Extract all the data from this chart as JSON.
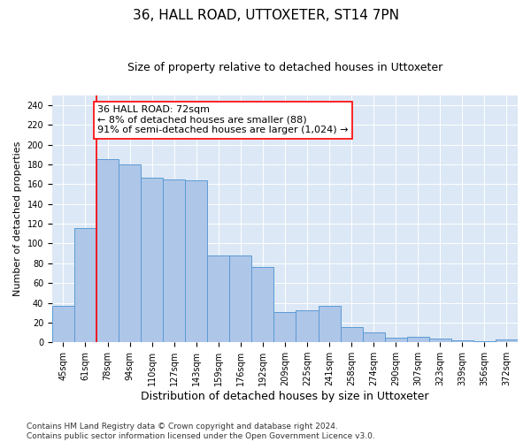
{
  "title": "36, HALL ROAD, UTTOXETER, ST14 7PN",
  "subtitle": "Size of property relative to detached houses in Uttoxeter",
  "xlabel": "Distribution of detached houses by size in Uttoxeter",
  "ylabel": "Number of detached properties",
  "categories": [
    "45sqm",
    "61sqm",
    "78sqm",
    "94sqm",
    "110sqm",
    "127sqm",
    "143sqm",
    "159sqm",
    "176sqm",
    "192sqm",
    "209sqm",
    "225sqm",
    "241sqm",
    "258sqm",
    "274sqm",
    "290sqm",
    "307sqm",
    "323sqm",
    "339sqm",
    "356sqm",
    "372sqm"
  ],
  "values": [
    37,
    116,
    185,
    180,
    167,
    165,
    164,
    88,
    88,
    76,
    31,
    32,
    37,
    15,
    10,
    5,
    6,
    4,
    2,
    1,
    3
  ],
  "bar_color": "#aec6e8",
  "bar_edge_color": "#5b9bd5",
  "vline_color": "red",
  "annotation_text": "36 HALL ROAD: 72sqm\n← 8% of detached houses are smaller (88)\n91% of semi-detached houses are larger (1,024) →",
  "annotation_box_color": "white",
  "annotation_box_edge_color": "red",
  "ylim": [
    0,
    250
  ],
  "yticks": [
    0,
    20,
    40,
    60,
    80,
    100,
    120,
    140,
    160,
    180,
    200,
    220,
    240
  ],
  "background_color": "#e8f0f8",
  "plot_bg_color": "#dce8f5",
  "footer": "Contains HM Land Registry data © Crown copyright and database right 2024.\nContains public sector information licensed under the Open Government Licence v3.0.",
  "title_fontsize": 11,
  "subtitle_fontsize": 9,
  "annotation_fontsize": 8,
  "ylabel_fontsize": 8,
  "xlabel_fontsize": 9,
  "tick_fontsize": 7,
  "footer_fontsize": 6.5
}
